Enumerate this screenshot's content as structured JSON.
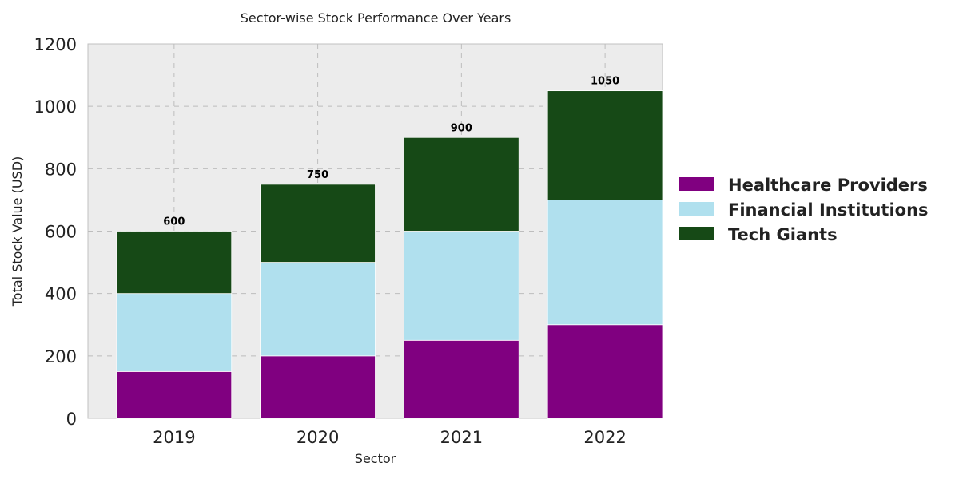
{
  "chart_data": {
    "type": "bar",
    "stacked": true,
    "title": "Sector-wise Stock Performance Over Years",
    "xlabel": "Sector",
    "ylabel": "Total Stock Value (USD)",
    "categories": [
      "2019",
      "2020",
      "2021",
      "2022"
    ],
    "series": [
      {
        "name": "Healthcare Providers",
        "values": [
          150,
          200,
          250,
          300
        ],
        "color": "#800080"
      },
      {
        "name": "Financial Institutions",
        "values": [
          250,
          300,
          350,
          400
        ],
        "color": "#b0e0ee"
      },
      {
        "name": "Tech Giants",
        "values": [
          200,
          250,
          300,
          350
        ],
        "color": "#164916"
      }
    ],
    "totals": [
      "600",
      "750",
      "900",
      "1050"
    ],
    "ylim": [
      0,
      1200
    ],
    "yticks": [
      "0",
      "200",
      "400",
      "600",
      "800",
      "1000",
      "1200"
    ],
    "grid": true,
    "legend_position": "right",
    "background": "#ececec"
  }
}
